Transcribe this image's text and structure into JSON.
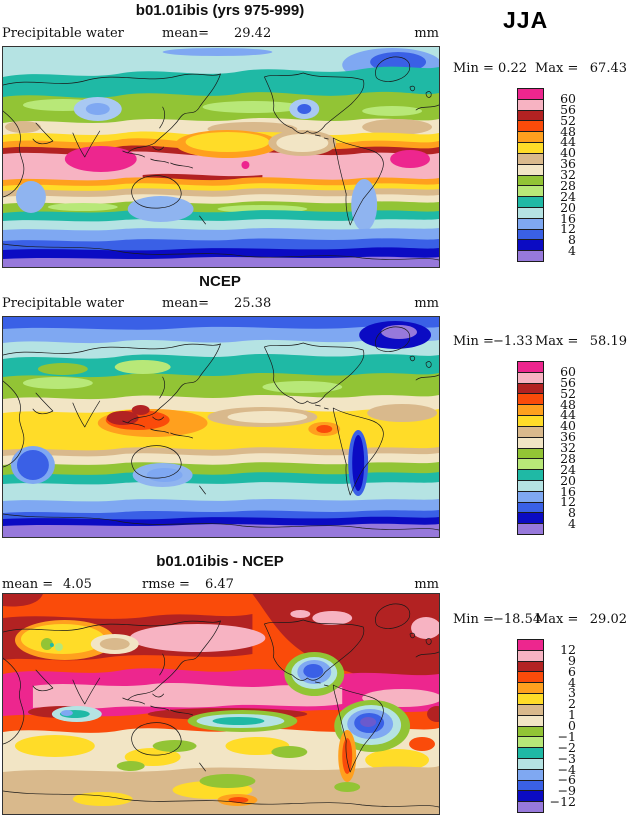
{
  "season_label": "JJA",
  "palette": [
    "#ED268E",
    "#F7B3C2",
    "#B22222",
    "#FA4B0A",
    "#FFA01E",
    "#FFDC28",
    "#D9B98C",
    "#F2E5C5",
    "#92C435",
    "#B8E878",
    "#1FB9A5",
    "#B5E3E3",
    "#7FA8F2",
    "#3A60E6",
    "#0B0BC3",
    "#9779DB"
  ],
  "panels": [
    {
      "title": "b01.01ibis (yrs 975-999)",
      "left_label": "Precipitable water",
      "left_value": "",
      "mid_label": "mean=",
      "mid_value": "29.42",
      "units": "mm",
      "min_label": "Min =",
      "min_value": "0.22",
      "max_label": "Max =",
      "max_value": "67.43",
      "colorbar_labels": [
        "60",
        "56",
        "52",
        "48",
        "44",
        "40",
        "36",
        "32",
        "28",
        "24",
        "20",
        "16",
        "12",
        "8",
        "4"
      ]
    },
    {
      "title": "NCEP",
      "left_label": "Precipitable water",
      "left_value": "",
      "mid_label": "mean=",
      "mid_value": "25.38",
      "units": "mm",
      "min_label": "Min =",
      "min_value": "−1.33",
      "max_label": "Max =",
      "max_value": "58.19",
      "colorbar_labels": [
        "60",
        "56",
        "52",
        "48",
        "44",
        "40",
        "36",
        "32",
        "28",
        "24",
        "20",
        "16",
        "12",
        "8",
        "4"
      ]
    },
    {
      "title": "b01.01ibis - NCEP",
      "left_label": "mean =",
      "left_value": "4.05",
      "mid_label": "rmse =",
      "mid_value": "6.47",
      "units": "mm",
      "min_label": "Min =",
      "min_value": "−18.54",
      "max_label": "Max =",
      "max_value": "29.02",
      "colorbar_labels": [
        "12",
        "9",
        "6",
        "4",
        "3",
        "2",
        "1",
        "0",
        "−1",
        "−2",
        "−3",
        "−4",
        "−6",
        "−9",
        "−12"
      ]
    }
  ],
  "chart_data": [
    {
      "type": "heatmap",
      "subtype": "filled-contour-global-map",
      "title": "b01.01ibis (yrs 975-999)",
      "variable": "Precipitable water",
      "season": "JJA",
      "units": "mm",
      "mean": 29.42,
      "min": 0.22,
      "max": 67.43,
      "contour_levels": [
        4,
        8,
        12,
        16,
        20,
        24,
        28,
        32,
        36,
        40,
        44,
        48,
        52,
        56,
        60
      ],
      "legend_position": "right"
    },
    {
      "type": "heatmap",
      "subtype": "filled-contour-global-map",
      "title": "NCEP",
      "variable": "Precipitable water",
      "season": "JJA",
      "units": "mm",
      "mean": 25.38,
      "min": -1.33,
      "max": 58.19,
      "contour_levels": [
        4,
        8,
        12,
        16,
        20,
        24,
        28,
        32,
        36,
        40,
        44,
        48,
        52,
        56,
        60
      ],
      "legend_position": "right"
    },
    {
      "type": "heatmap",
      "subtype": "filled-contour-global-map-difference",
      "title": "b01.01ibis - NCEP",
      "variable": "Precipitable water difference",
      "season": "JJA",
      "units": "mm",
      "mean": 4.05,
      "rmse": 6.47,
      "min": -18.54,
      "max": 29.02,
      "contour_levels": [
        -12,
        -9,
        -6,
        -4,
        -3,
        -2,
        -1,
        0,
        1,
        2,
        3,
        4,
        6,
        9,
        12
      ],
      "legend_position": "right"
    }
  ]
}
